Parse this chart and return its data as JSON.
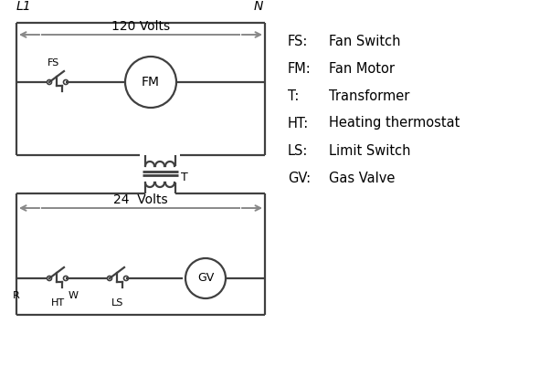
{
  "bg_color": "#ffffff",
  "line_color": "#404040",
  "arrow_color": "#888888",
  "legend": [
    [
      "FS:  ",
      "Fan Switch"
    ],
    [
      "FM:",
      " Fan Motor"
    ],
    [
      "T:   ",
      "    Transformer"
    ],
    [
      "HT: ",
      " Heating thermostat"
    ],
    [
      "LS:  ",
      "Limit Switch"
    ],
    [
      "GV: ",
      " Gas Valve"
    ]
  ],
  "L1_label": "L1",
  "N_label": "N",
  "volts120_label": "120 Volts",
  "volts24_label": "24  Volts",
  "T_label": "T",
  "R_label": "R",
  "W_label": "W",
  "HT_label": "HT",
  "LS_label": "LS",
  "FS_label": "FS",
  "FM_label": "FM",
  "GV_label": "GV"
}
